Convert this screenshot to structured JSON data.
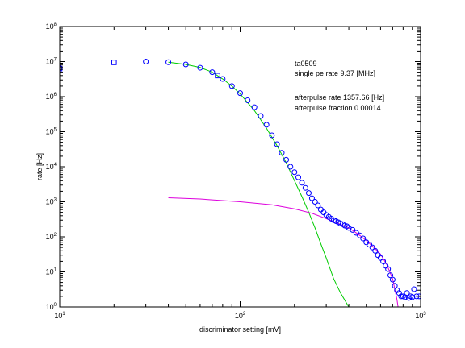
{
  "chart_data": {
    "type": "scatter",
    "xscale": "log",
    "yscale": "log",
    "xlim": [
      10,
      1000
    ],
    "ylim": [
      1,
      100000000
    ],
    "xlabel": "discriminator setting [mV]",
    "ylabel": "rate [Hz]",
    "grid": false,
    "x_ticks": [
      {
        "base": "10",
        "exp": "1",
        "value": 10
      },
      {
        "base": "10",
        "exp": "2",
        "value": 100
      },
      {
        "base": "10",
        "exp": "3",
        "value": 1000
      }
    ],
    "y_ticks": [
      {
        "base": "10",
        "exp": "0",
        "value": 1
      },
      {
        "base": "10",
        "exp": "1",
        "value": 10
      },
      {
        "base": "10",
        "exp": "2",
        "value": 100
      },
      {
        "base": "10",
        "exp": "3",
        "value": 1000
      },
      {
        "base": "10",
        "exp": "4",
        "value": 10000
      },
      {
        "base": "10",
        "exp": "5",
        "value": 100000
      },
      {
        "base": "10",
        "exp": "6",
        "value": 1000000
      },
      {
        "base": "10",
        "exp": "7",
        "value": 10000000
      },
      {
        "base": "10",
        "exp": "8",
        "value": 100000000
      }
    ],
    "annotations": {
      "tube_id": "ta0509",
      "single_pe_rate": "single pe rate 9.37 [MHz]",
      "afterpulse_rate": "afterpulse rate 1357.66 [Hz]",
      "afterpulse_fraction": "afterpulse fraction 0.00014"
    },
    "series": [
      {
        "marker": "square",
        "color": "#0000ff",
        "points": [
          [
            10,
            6300000
          ],
          [
            20,
            9500000
          ],
          [
            75,
            4000000
          ]
        ]
      },
      {
        "marker": "circle",
        "color": "#0000ff",
        "points": [
          [
            10,
            6600000
          ],
          [
            30,
            10000000
          ],
          [
            40,
            9600000
          ],
          [
            50,
            8300000
          ],
          [
            60,
            6700000
          ],
          [
            70,
            5000000
          ],
          [
            80,
            3200000
          ],
          [
            90,
            2000000
          ],
          [
            100,
            1260000
          ],
          [
            110,
            790000
          ],
          [
            120,
            500000
          ],
          [
            130,
            280000
          ],
          [
            140,
            158000
          ],
          [
            150,
            79000
          ],
          [
            160,
            44000
          ],
          [
            170,
            25000
          ],
          [
            180,
            15800
          ],
          [
            190,
            10000
          ],
          [
            200,
            7000
          ],
          [
            210,
            5000
          ],
          [
            220,
            3500
          ],
          [
            230,
            2500
          ],
          [
            240,
            1780
          ],
          [
            250,
            1260
          ],
          [
            260,
            1000
          ],
          [
            270,
            790
          ],
          [
            280,
            600
          ],
          [
            290,
            500
          ],
          [
            300,
            420
          ],
          [
            310,
            370
          ],
          [
            320,
            330
          ],
          [
            330,
            300
          ],
          [
            340,
            280
          ],
          [
            350,
            260
          ],
          [
            360,
            240
          ],
          [
            370,
            230
          ],
          [
            380,
            210
          ],
          [
            390,
            200
          ],
          [
            400,
            180
          ],
          [
            420,
            158
          ],
          [
            440,
            130
          ],
          [
            460,
            110
          ],
          [
            480,
            90
          ],
          [
            500,
            70
          ],
          [
            520,
            60
          ],
          [
            540,
            50
          ],
          [
            560,
            40
          ],
          [
            580,
            30
          ],
          [
            600,
            25
          ],
          [
            620,
            20
          ],
          [
            640,
            15
          ],
          [
            660,
            12
          ],
          [
            680,
            8
          ],
          [
            700,
            6
          ],
          [
            720,
            4
          ],
          [
            740,
            3
          ],
          [
            760,
            2.5
          ],
          [
            780,
            2
          ],
          [
            800,
            2
          ],
          [
            820,
            1.9
          ],
          [
            840,
            2.5
          ],
          [
            860,
            1.8
          ],
          [
            880,
            2
          ],
          [
            900,
            1.9
          ],
          [
            920,
            3.2
          ],
          [
            950,
            2
          ],
          [
            980,
            2
          ]
        ]
      },
      {
        "line": "single-pe-fit",
        "color": "#00cc00",
        "points": [
          [
            40,
            9600000
          ],
          [
            50,
            8300000
          ],
          [
            60,
            6800000
          ],
          [
            70,
            5000000
          ],
          [
            80,
            3200000
          ],
          [
            90,
            2000000
          ],
          [
            100,
            1200000
          ],
          [
            120,
            400000
          ],
          [
            140,
            125000
          ],
          [
            160,
            40000
          ],
          [
            180,
            13000
          ],
          [
            200,
            4000
          ],
          [
            220,
            1400
          ],
          [
            240,
            500
          ],
          [
            260,
            180
          ],
          [
            280,
            63
          ],
          [
            300,
            25
          ],
          [
            330,
            6.3
          ],
          [
            360,
            2.5
          ],
          [
            400,
            1
          ]
        ]
      },
      {
        "line": "afterpulse-fit",
        "color": "#dd00dd",
        "points": [
          [
            40,
            1300
          ],
          [
            60,
            1200
          ],
          [
            100,
            1000
          ],
          [
            150,
            820
          ],
          [
            200,
            630
          ],
          [
            250,
            470
          ],
          [
            300,
            330
          ],
          [
            350,
            240
          ],
          [
            400,
            180
          ],
          [
            450,
            120
          ],
          [
            500,
            79
          ],
          [
            550,
            50
          ],
          [
            600,
            32
          ],
          [
            650,
            16
          ],
          [
            700,
            6.3
          ],
          [
            720,
            3.2
          ],
          [
            740,
            1.6
          ],
          [
            750,
            1
          ]
        ]
      }
    ]
  }
}
